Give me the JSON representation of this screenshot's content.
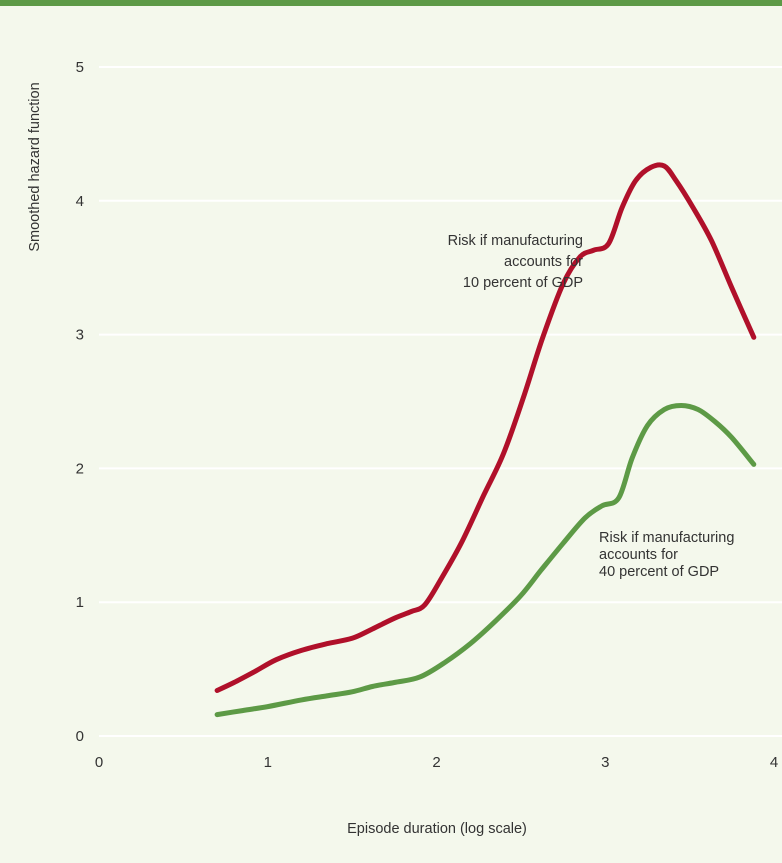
{
  "chart_data": {
    "type": "line",
    "title": "",
    "xlabel": "Episode duration (log scale)",
    "ylabel": "Smoothed hazard function",
    "xlim": [
      0,
      4
    ],
    "ylim": [
      0,
      5
    ],
    "x_ticks": [
      "0",
      "1",
      "2",
      "3",
      "4"
    ],
    "y_ticks": [
      "0",
      "1",
      "2",
      "3",
      "4",
      "5"
    ],
    "grid": "horizontal",
    "colors": {
      "background": "#f4f8ec",
      "top_bar": "#5d9a46",
      "grid": "#ffffff",
      "text": "#333333"
    },
    "series": [
      {
        "color": "#b0102a",
        "annotation": [
          "Risk if manufacturing",
          "accounts for",
          "10 percent of GDP"
        ],
        "x": [
          0.7,
          0.8,
          0.92,
          1.05,
          1.2,
          1.35,
          1.5,
          1.62,
          1.75,
          1.85,
          1.93,
          2.03,
          2.15,
          2.28,
          2.4,
          2.52,
          2.63,
          2.75,
          2.85,
          2.93,
          3.02,
          3.1,
          3.18,
          3.27,
          3.35,
          3.42,
          3.52,
          3.63,
          3.75,
          3.88
        ],
        "y": [
          0.34,
          0.4,
          0.48,
          0.57,
          0.64,
          0.69,
          0.73,
          0.8,
          0.88,
          0.93,
          0.98,
          1.18,
          1.45,
          1.8,
          2.12,
          2.55,
          2.98,
          3.38,
          3.58,
          3.63,
          3.68,
          3.95,
          4.15,
          4.25,
          4.26,
          4.15,
          3.95,
          3.7,
          3.35,
          2.98
        ]
      },
      {
        "color": "#5d9a46",
        "annotation": [
          "Risk if manufacturing",
          "accounts for",
          "40 percent of GDP"
        ],
        "x": [
          0.7,
          0.85,
          1.0,
          1.2,
          1.35,
          1.5,
          1.62,
          1.75,
          1.9,
          2.05,
          2.2,
          2.35,
          2.5,
          2.62,
          2.75,
          2.88,
          2.98,
          3.08,
          3.16,
          3.25,
          3.35,
          3.45,
          3.55,
          3.65,
          3.75,
          3.88
        ],
        "y": [
          0.16,
          0.19,
          0.22,
          0.27,
          0.3,
          0.33,
          0.37,
          0.4,
          0.44,
          0.55,
          0.69,
          0.86,
          1.05,
          1.24,
          1.44,
          1.63,
          1.72,
          1.78,
          2.08,
          2.32,
          2.44,
          2.47,
          2.44,
          2.35,
          2.23,
          2.03
        ]
      }
    ]
  }
}
